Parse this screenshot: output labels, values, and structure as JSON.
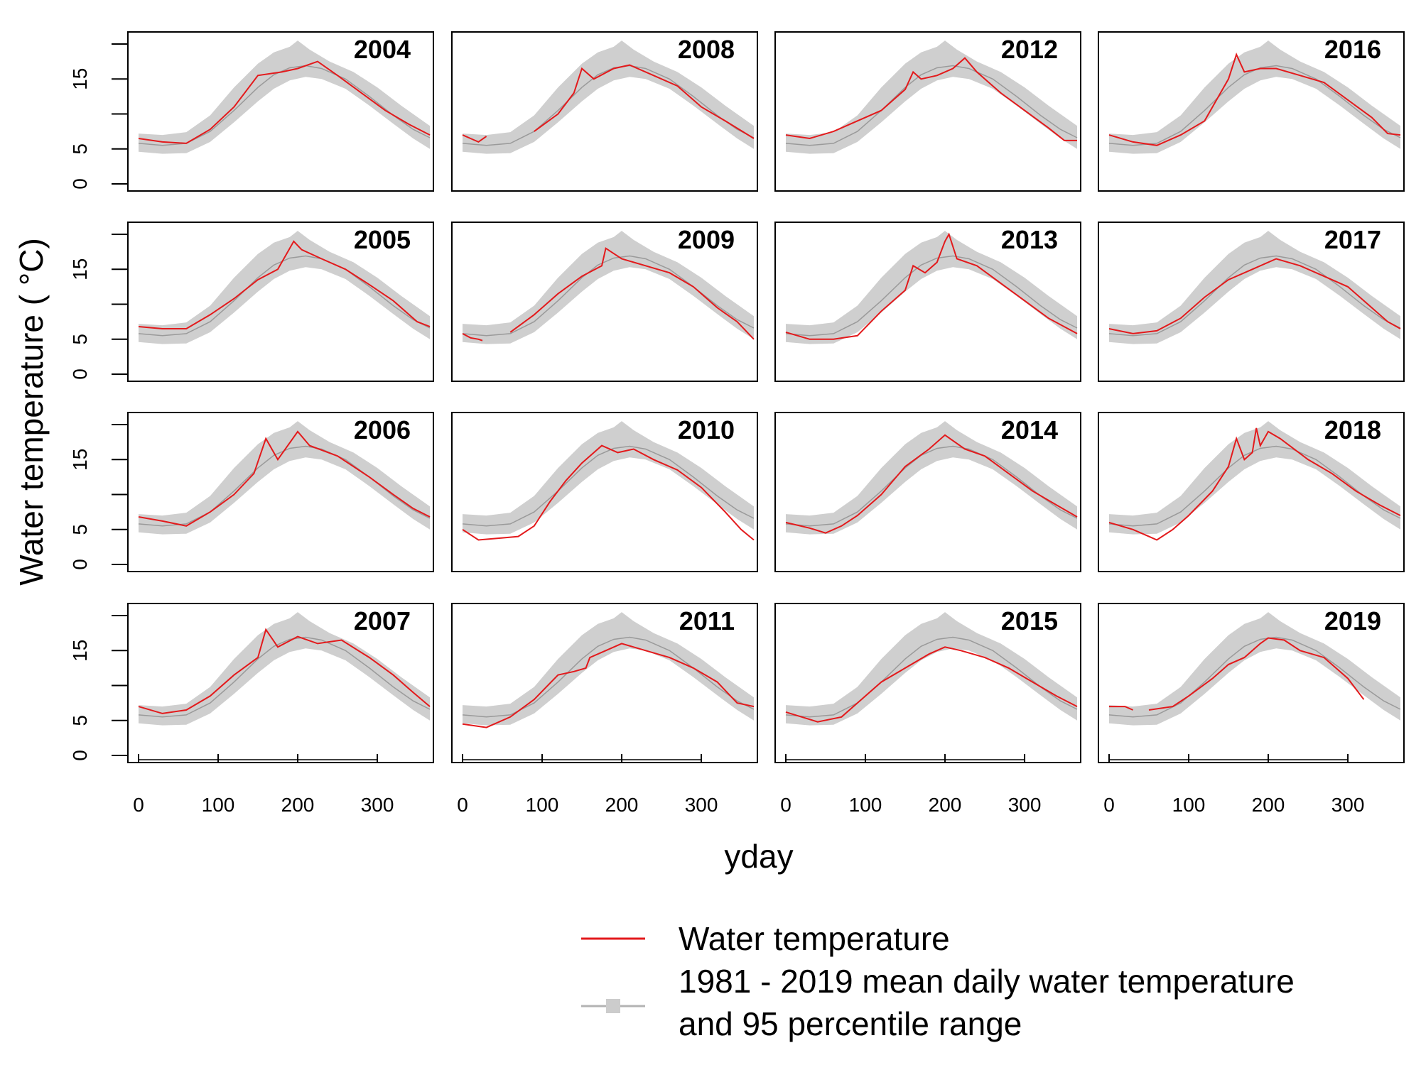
{
  "chart_data": {
    "type": "line",
    "layout": "4x4 small multiples, years run down columns",
    "ylabel": "Water temperature ( °C)",
    "xlabel": "yday",
    "x_ticks": [
      0,
      100,
      200,
      300
    ],
    "y_ticks": [
      0,
      5,
      15
    ],
    "xlim": [
      0,
      366
    ],
    "ylim": [
      0,
      20
    ],
    "legend": {
      "placement": "bottom-right",
      "entries": [
        {
          "label": "Water temperature",
          "color": "#e31a1c",
          "style": "line"
        },
        {
          "label_line1": "1981 - 2019 mean daily water temperature",
          "label_line2": "and 95 percentile range",
          "color": "#b3b3b3",
          "style": "line-with-band"
        }
      ]
    },
    "climatology": {
      "name": "1981 - 2019 mean daily water temperature and 95 percentile range",
      "mean": [
        [
          0,
          5.8
        ],
        [
          30,
          5.5
        ],
        [
          60,
          5.8
        ],
        [
          90,
          7.5
        ],
        [
          120,
          10.5
        ],
        [
          150,
          13.8
        ],
        [
          170,
          15.6
        ],
        [
          190,
          16.6
        ],
        [
          210,
          16.9
        ],
        [
          230,
          16.5
        ],
        [
          260,
          15
        ],
        [
          290,
          12.5
        ],
        [
          320,
          9.8
        ],
        [
          345,
          7.8
        ],
        [
          366,
          6.6
        ]
      ],
      "lower": [
        [
          0,
          4.6
        ],
        [
          30,
          4.3
        ],
        [
          60,
          4.4
        ],
        [
          90,
          6
        ],
        [
          120,
          8.8
        ],
        [
          150,
          11.8
        ],
        [
          170,
          13.6
        ],
        [
          190,
          14.8
        ],
        [
          210,
          15.3
        ],
        [
          230,
          15
        ],
        [
          260,
          13.6
        ],
        [
          290,
          11.2
        ],
        [
          320,
          8.6
        ],
        [
          345,
          6.5
        ],
        [
          366,
          5
        ]
      ],
      "upper": [
        [
          0,
          7.2
        ],
        [
          30,
          7
        ],
        [
          60,
          7.4
        ],
        [
          90,
          9.8
        ],
        [
          120,
          13.8
        ],
        [
          150,
          17.2
        ],
        [
          170,
          18.8
        ],
        [
          190,
          19.6
        ],
        [
          200,
          20.5
        ],
        [
          215,
          19.2
        ],
        [
          240,
          17.5
        ],
        [
          270,
          16
        ],
        [
          300,
          13.8
        ],
        [
          330,
          11.2
        ],
        [
          366,
          8.3
        ]
      ]
    },
    "years": [
      {
        "year": "2004",
        "color": "#e31a1c",
        "points": [
          [
            0,
            6.5
          ],
          [
            30,
            6
          ],
          [
            60,
            5.8
          ],
          [
            90,
            7.8
          ],
          [
            120,
            11
          ],
          [
            150,
            15.5
          ],
          [
            180,
            16
          ],
          [
            200,
            16.5
          ],
          [
            225,
            17.5
          ],
          [
            250,
            15.5
          ],
          [
            280,
            13
          ],
          [
            310,
            10.5
          ],
          [
            340,
            8.5
          ],
          [
            366,
            7
          ]
        ]
      },
      {
        "year": "2005",
        "color": "#e31a1c",
        "points": [
          [
            0,
            6.8
          ],
          [
            30,
            6.5
          ],
          [
            60,
            6.5
          ],
          [
            90,
            8.5
          ],
          [
            120,
            10.8
          ],
          [
            150,
            13.5
          ],
          [
            175,
            15
          ],
          [
            195,
            19
          ],
          [
            205,
            17.8
          ],
          [
            230,
            16.5
          ],
          [
            260,
            15
          ],
          [
            290,
            12.8
          ],
          [
            320,
            10.5
          ],
          [
            350,
            7.5
          ],
          [
            366,
            6.8
          ]
        ]
      },
      {
        "year": "2006",
        "color": "#e31a1c",
        "points": [
          [
            0,
            6.8
          ],
          [
            30,
            6.2
          ],
          [
            60,
            5.5
          ],
          [
            90,
            7.5
          ],
          [
            120,
            10
          ],
          [
            145,
            13
          ],
          [
            160,
            18
          ],
          [
            175,
            15
          ],
          [
            200,
            19
          ],
          [
            215,
            17
          ],
          [
            250,
            15.5
          ],
          [
            290,
            12.5
          ],
          [
            320,
            10
          ],
          [
            345,
            8
          ],
          [
            366,
            6.8
          ]
        ]
      },
      {
        "year": "2007",
        "color": "#e31a1c",
        "points": [
          [
            0,
            7
          ],
          [
            30,
            6
          ],
          [
            60,
            6.5
          ],
          [
            90,
            8.5
          ],
          [
            120,
            11.5
          ],
          [
            150,
            14
          ],
          [
            160,
            18
          ],
          [
            175,
            15.5
          ],
          [
            200,
            17
          ],
          [
            225,
            16
          ],
          [
            255,
            16.5
          ],
          [
            290,
            14
          ],
          [
            320,
            11.5
          ],
          [
            345,
            9
          ],
          [
            366,
            7
          ]
        ]
      },
      {
        "year": "2008",
        "color": "#e31a1c",
        "points": [
          [
            0,
            7
          ],
          [
            10,
            6.5
          ],
          [
            20,
            6
          ],
          [
            30,
            6.8
          ],
          [
            null,
            null
          ],
          [
            90,
            7.5
          ],
          [
            120,
            10
          ],
          [
            140,
            13
          ],
          [
            150,
            16.5
          ],
          [
            165,
            15
          ],
          [
            190,
            16.5
          ],
          [
            210,
            17
          ],
          [
            240,
            15.5
          ],
          [
            270,
            14
          ],
          [
            300,
            11
          ],
          [
            330,
            9
          ],
          [
            366,
            6.5
          ]
        ]
      },
      {
        "year": "2009",
        "color": "#e31a1c",
        "points": [
          [
            0,
            5.8
          ],
          [
            10,
            5.2
          ],
          [
            20,
            5
          ],
          [
            25,
            4.8
          ],
          [
            null,
            null
          ],
          [
            60,
            6
          ],
          [
            90,
            8.5
          ],
          [
            120,
            11.5
          ],
          [
            150,
            14
          ],
          [
            175,
            15.5
          ],
          [
            180,
            18
          ],
          [
            200,
            16.5
          ],
          [
            230,
            15.5
          ],
          [
            260,
            14.5
          ],
          [
            290,
            12.5
          ],
          [
            320,
            9.5
          ],
          [
            345,
            7.5
          ],
          [
            366,
            5
          ]
        ]
      },
      {
        "year": "2010",
        "color": "#e31a1c",
        "points": [
          [
            0,
            5
          ],
          [
            20,
            3.5
          ],
          [
            50,
            3.8
          ],
          [
            70,
            4
          ],
          [
            90,
            5.5
          ],
          [
            110,
            9
          ],
          [
            130,
            12
          ],
          [
            150,
            14.5
          ],
          [
            175,
            17
          ],
          [
            195,
            16
          ],
          [
            215,
            16.5
          ],
          [
            240,
            15
          ],
          [
            270,
            13.5
          ],
          [
            300,
            11
          ],
          [
            330,
            7.5
          ],
          [
            350,
            5
          ],
          [
            366,
            3.5
          ]
        ]
      },
      {
        "year": "2011",
        "color": "#e31a1c",
        "points": [
          [
            0,
            4.5
          ],
          [
            30,
            4
          ],
          [
            60,
            5.5
          ],
          [
            90,
            8
          ],
          [
            120,
            11.5
          ],
          [
            140,
            12
          ],
          [
            155,
            12.5
          ],
          [
            160,
            14
          ],
          [
            180,
            15
          ],
          [
            200,
            16
          ],
          [
            230,
            15
          ],
          [
            260,
            14
          ],
          [
            290,
            12.5
          ],
          [
            320,
            10.5
          ],
          [
            345,
            7.5
          ],
          [
            366,
            7
          ]
        ]
      },
      {
        "year": "2012",
        "color": "#e31a1c",
        "points": [
          [
            0,
            7
          ],
          [
            30,
            6.5
          ],
          [
            60,
            7.5
          ],
          [
            90,
            9
          ],
          [
            120,
            10.5
          ],
          [
            135,
            12
          ],
          [
            150,
            13.5
          ],
          [
            160,
            16
          ],
          [
            170,
            15
          ],
          [
            190,
            15.5
          ],
          [
            210,
            16.5
          ],
          [
            225,
            18
          ],
          [
            240,
            16
          ],
          [
            270,
            13
          ],
          [
            300,
            10.5
          ],
          [
            330,
            8
          ],
          [
            350,
            6.2
          ],
          [
            366,
            6.2
          ]
        ]
      },
      {
        "year": "2013",
        "color": "#e31a1c",
        "points": [
          [
            0,
            6
          ],
          [
            30,
            5
          ],
          [
            60,
            5
          ],
          [
            90,
            5.5
          ],
          [
            120,
            9
          ],
          [
            150,
            12
          ],
          [
            160,
            15.5
          ],
          [
            175,
            14.5
          ],
          [
            190,
            16
          ],
          [
            200,
            19
          ],
          [
            205,
            20
          ],
          [
            215,
            16.5
          ],
          [
            240,
            15.5
          ],
          [
            270,
            13
          ],
          [
            300,
            10.5
          ],
          [
            330,
            8
          ],
          [
            366,
            5.8
          ]
        ]
      },
      {
        "year": "2014",
        "color": "#e31a1c",
        "points": [
          [
            0,
            6
          ],
          [
            30,
            5.2
          ],
          [
            50,
            4.5
          ],
          [
            70,
            5.5
          ],
          [
            90,
            7
          ],
          [
            120,
            10
          ],
          [
            150,
            14
          ],
          [
            180,
            16.5
          ],
          [
            200,
            18.5
          ],
          [
            225,
            16.5
          ],
          [
            250,
            15.5
          ],
          [
            280,
            13
          ],
          [
            310,
            10.5
          ],
          [
            340,
            8.5
          ],
          [
            366,
            6.8
          ]
        ]
      },
      {
        "year": "2015",
        "color": "#e31a1c",
        "points": [
          [
            0,
            6.2
          ],
          [
            20,
            5.5
          ],
          [
            40,
            4.8
          ],
          [
            70,
            5.5
          ],
          [
            90,
            7.5
          ],
          [
            120,
            10.5
          ],
          [
            150,
            12.5
          ],
          [
            180,
            14.5
          ],
          [
            200,
            15.5
          ],
          [
            220,
            15
          ],
          [
            250,
            14
          ],
          [
            280,
            12.5
          ],
          [
            310,
            10.5
          ],
          [
            340,
            8.5
          ],
          [
            366,
            7
          ]
        ]
      },
      {
        "year": "2016",
        "color": "#e31a1c",
        "points": [
          [
            0,
            7
          ],
          [
            30,
            6
          ],
          [
            60,
            5.5
          ],
          [
            90,
            7
          ],
          [
            120,
            9
          ],
          [
            140,
            13
          ],
          [
            150,
            15
          ],
          [
            160,
            18.5
          ],
          [
            170,
            16
          ],
          [
            190,
            16.5
          ],
          [
            210,
            16.5
          ],
          [
            240,
            15.5
          ],
          [
            270,
            14.5
          ],
          [
            300,
            12
          ],
          [
            330,
            9.5
          ],
          [
            350,
            7.2
          ],
          [
            366,
            7
          ]
        ]
      },
      {
        "year": "2017",
        "color": "#e31a1c",
        "points": [
          [
            0,
            6.5
          ],
          [
            30,
            5.8
          ],
          [
            60,
            6.2
          ],
          [
            90,
            8
          ],
          [
            120,
            11
          ],
          [
            150,
            13.5
          ],
          [
            180,
            15
          ],
          [
            210,
            16.5
          ],
          [
            240,
            15.5
          ],
          [
            270,
            14
          ],
          [
            300,
            12.5
          ],
          [
            330,
            9.5
          ],
          [
            350,
            7.5
          ],
          [
            366,
            6.5
          ]
        ]
      },
      {
        "year": "2018",
        "color": "#e31a1c",
        "points": [
          [
            0,
            6
          ],
          [
            30,
            5
          ],
          [
            50,
            4
          ],
          [
            60,
            3.5
          ],
          [
            80,
            5
          ],
          [
            100,
            7
          ],
          [
            130,
            10.5
          ],
          [
            150,
            14
          ],
          [
            160,
            18
          ],
          [
            170,
            15
          ],
          [
            180,
            16
          ],
          [
            185,
            19.5
          ],
          [
            190,
            17
          ],
          [
            200,
            19
          ],
          [
            215,
            18
          ],
          [
            250,
            15
          ],
          [
            280,
            13
          ],
          [
            310,
            10.5
          ],
          [
            340,
            8.5
          ],
          [
            366,
            7
          ]
        ]
      },
      {
        "year": "2019",
        "color": "#e31a1c",
        "points": [
          [
            0,
            7
          ],
          [
            20,
            7
          ],
          [
            30,
            6.5
          ],
          [
            null,
            null
          ],
          [
            50,
            6.5
          ],
          [
            80,
            7
          ],
          [
            100,
            8.5
          ],
          [
            130,
            11
          ],
          [
            150,
            13
          ],
          [
            170,
            14
          ],
          [
            190,
            16
          ],
          [
            200,
            16.8
          ],
          [
            220,
            16.5
          ],
          [
            240,
            15
          ],
          [
            270,
            14
          ],
          [
            300,
            11
          ],
          [
            320,
            8
          ]
        ]
      }
    ]
  }
}
